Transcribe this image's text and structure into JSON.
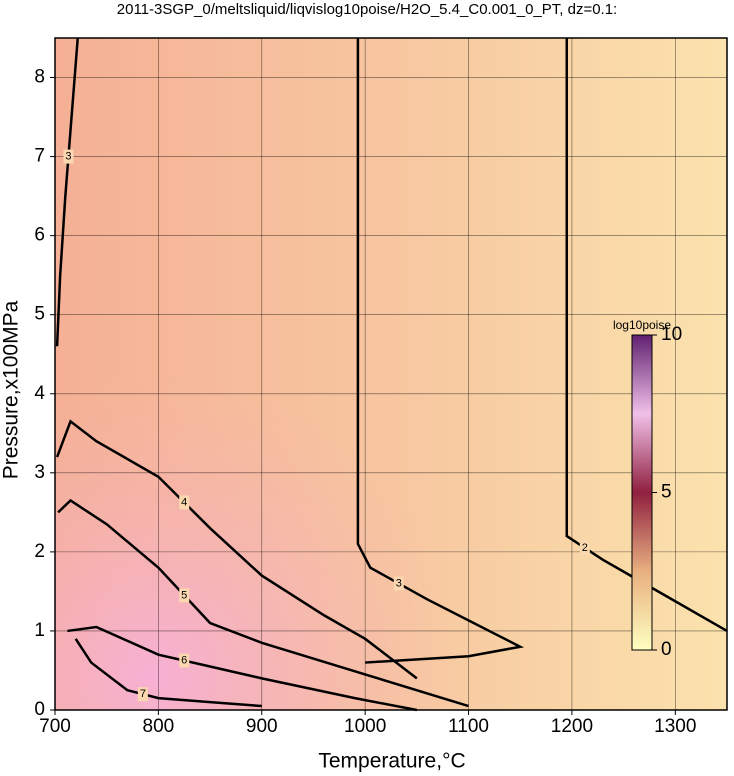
{
  "chart_data": {
    "type": "contour",
    "title": "2011-3SGP_0/meltsliquid/liqvislog10poise/H2O_5.4_C0.001_0_PT, dz=0.1:",
    "x_label": "Temperature,°C",
    "y_label": "Pressure,x100MPa",
    "xlim": [
      700,
      1350
    ],
    "ylim": [
      0,
      8.5
    ],
    "xticks": [
      700,
      800,
      900,
      1000,
      1100,
      1200,
      1300
    ],
    "yticks": [
      0,
      1,
      2,
      3,
      4,
      5,
      6,
      7,
      8
    ],
    "grid": true,
    "contours": [
      {
        "level": 2,
        "x": [
          1195,
          1195,
          1230,
          1290,
          1350
        ],
        "y": [
          8.5,
          2.2,
          1.9,
          1.45,
          1.0
        ]
      },
      {
        "level": 3,
        "x": [
          993,
          993,
          1005,
          1060,
          1150,
          1100,
          1000
        ],
        "y": [
          8.5,
          2.1,
          1.8,
          1.4,
          0.8,
          0.68,
          0.6
        ]
      },
      {
        "level": 3,
        "x": [
          722,
          716,
          710,
          705,
          702
        ],
        "y": [
          8.5,
          7.5,
          6.5,
          5.5,
          4.6
        ]
      },
      {
        "level": 4,
        "x": [
          702,
          715,
          740,
          800,
          850,
          900,
          960,
          1000,
          1050
        ],
        "y": [
          3.2,
          3.65,
          3.4,
          2.95,
          2.3,
          1.7,
          1.2,
          0.9,
          0.4
        ]
      },
      {
        "level": 5,
        "x": [
          703,
          715,
          750,
          800,
          850,
          900,
          1000,
          1100
        ],
        "y": [
          2.5,
          2.65,
          2.35,
          1.8,
          1.1,
          0.85,
          0.45,
          0.05
        ]
      },
      {
        "level": 6,
        "x": [
          712,
          740,
          800,
          850,
          900,
          990,
          1050
        ],
        "y": [
          1.0,
          1.05,
          0.7,
          0.55,
          0.4,
          0.15,
          0.0
        ]
      },
      {
        "level": 7,
        "x": [
          720,
          735,
          770,
          800,
          850,
          900
        ],
        "y": [
          0.9,
          0.6,
          0.25,
          0.15,
          0.1,
          0.05
        ]
      }
    ],
    "colorbar": {
      "label": "log10poise",
      "lim": [
        0,
        10
      ],
      "ticks": [
        0,
        5,
        10
      ],
      "colors": [
        "#ffffc0",
        "#e8b080",
        "#902040",
        "#f0c0e8",
        "#602070"
      ]
    }
  }
}
